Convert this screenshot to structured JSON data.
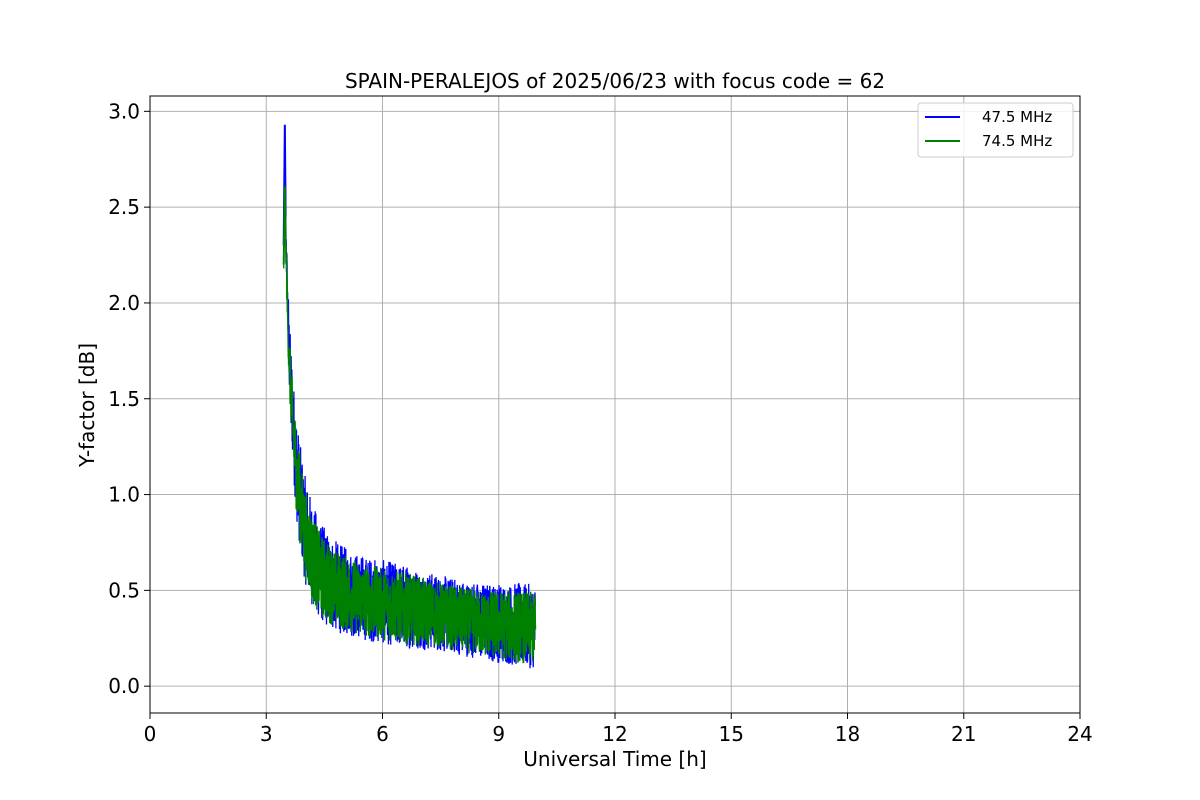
{
  "chart_data": {
    "type": "line",
    "title": "SPAIN-PERALEJOS of 2025/06/23 with focus code = 62",
    "xlabel": "Universal Time [h]",
    "ylabel": "Y-factor [dB]",
    "xlim": [
      0,
      24
    ],
    "ylim": [
      -0.14,
      3.08
    ],
    "xticks": [
      0,
      3,
      6,
      9,
      12,
      15,
      18,
      21,
      24
    ],
    "xtick_labels": [
      "0",
      "3",
      "6",
      "9",
      "12",
      "15",
      "18",
      "21",
      "24"
    ],
    "yticks": [
      0.0,
      0.5,
      1.0,
      1.5,
      2.0,
      2.5,
      3.0
    ],
    "ytick_labels": [
      "0.0",
      "0.5",
      "1.0",
      "1.5",
      "2.0",
      "2.5",
      "3.0"
    ],
    "grid": true,
    "legend_position": "top-right",
    "series": [
      {
        "name": "47.5 MHz",
        "color": "#0000ff",
        "x": [
          3.45,
          3.48,
          3.5,
          3.55,
          3.6,
          3.7,
          3.8,
          3.9,
          4.0,
          4.2,
          4.4,
          4.6,
          4.8,
          5.0,
          5.5,
          6.0,
          6.5,
          7.0,
          7.5,
          8.0,
          8.5,
          9.0,
          9.5,
          9.95
        ],
        "y": [
          2.3,
          2.93,
          2.45,
          2.0,
          1.7,
          1.35,
          1.1,
          0.95,
          0.82,
          0.68,
          0.6,
          0.55,
          0.52,
          0.5,
          0.46,
          0.44,
          0.42,
          0.4,
          0.38,
          0.36,
          0.34,
          0.33,
          0.32,
          0.31
        ],
        "spread": [
          0.05,
          0.05,
          0.1,
          0.15,
          0.2,
          0.25,
          0.27,
          0.28,
          0.28,
          0.27,
          0.26,
          0.25,
          0.24,
          0.23,
          0.22,
          0.22,
          0.22,
          0.21,
          0.2,
          0.2,
          0.2,
          0.21,
          0.22,
          0.22
        ]
      },
      {
        "name": "74.5 MHz",
        "color": "#008000",
        "x": [
          3.45,
          3.48,
          3.5,
          3.55,
          3.6,
          3.7,
          3.8,
          3.9,
          4.0,
          4.2,
          4.4,
          4.6,
          4.8,
          5.0,
          5.5,
          6.0,
          6.5,
          7.0,
          7.5,
          8.0,
          8.5,
          9.0,
          9.5,
          9.95
        ],
        "y": [
          2.2,
          2.6,
          2.35,
          1.95,
          1.65,
          1.32,
          1.08,
          0.93,
          0.8,
          0.66,
          0.58,
          0.54,
          0.51,
          0.49,
          0.45,
          0.43,
          0.41,
          0.39,
          0.37,
          0.35,
          0.33,
          0.32,
          0.31,
          0.3
        ],
        "spread": [
          0.05,
          0.05,
          0.1,
          0.13,
          0.17,
          0.21,
          0.23,
          0.24,
          0.24,
          0.23,
          0.22,
          0.21,
          0.2,
          0.2,
          0.19,
          0.19,
          0.19,
          0.18,
          0.17,
          0.17,
          0.17,
          0.18,
          0.19,
          0.19
        ]
      }
    ]
  }
}
